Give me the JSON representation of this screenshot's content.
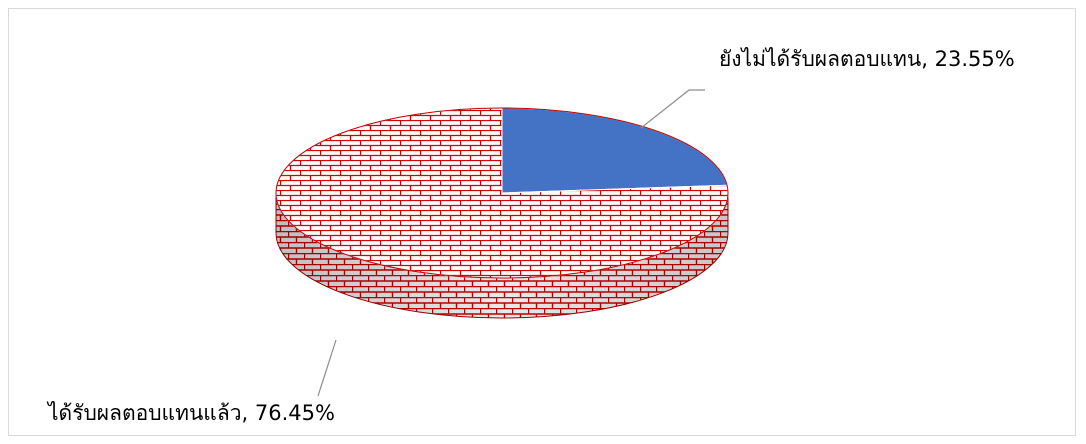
{
  "chart_data": {
    "type": "pie",
    "style": "3d",
    "slices": [
      {
        "label": "ยังไม่ได้รับผลตอบแทน",
        "value": 23.55,
        "data_label": "ยังไม่ได้รับผลตอบแทน, 23.55%",
        "color": "#4472c4",
        "fill": "solid"
      },
      {
        "label": "ได้รับผลตอบแทนแล้ว",
        "value": 76.45,
        "data_label": "ได้รับผลตอบแทนแล้ว, 76.45%",
        "color": "#c00000",
        "fill": "brick-pattern"
      }
    ],
    "legend": "none"
  }
}
